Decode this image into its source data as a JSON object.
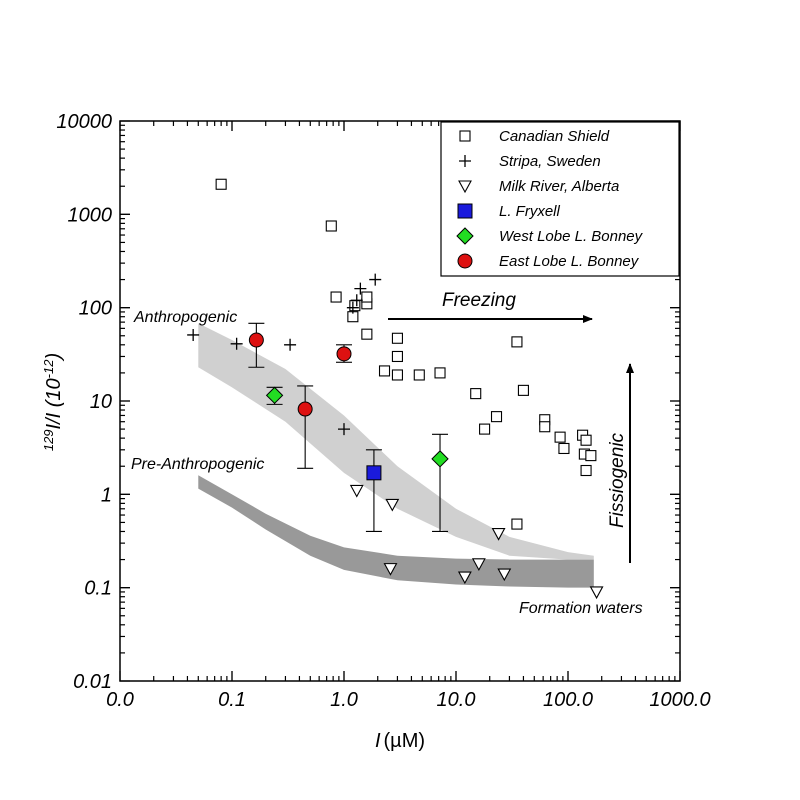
{
  "chart_data": {
    "type": "scatter",
    "x_scale": "log",
    "y_scale": "log",
    "xlabel_main": "I",
    "xlabel_unit": "(µM)",
    "ylabel_sup": "129",
    "ylabel_main": "I/I (10",
    "ylabel_exp": "-12",
    "ylabel_close": ")",
    "xlim": [
      0.01,
      1000
    ],
    "ylim": [
      0.01,
      10000
    ],
    "x_ticks": [
      {
        "v": 0.01,
        "label": "0.0"
      },
      {
        "v": 0.1,
        "label": "0.1"
      },
      {
        "v": 1,
        "label": "1.0"
      },
      {
        "v": 10,
        "label": "10.0"
      },
      {
        "v": 100,
        "label": "100.0"
      },
      {
        "v": 1000,
        "label": "1000.0"
      }
    ],
    "y_ticks": [
      {
        "v": 0.01,
        "label": "0.01"
      },
      {
        "v": 0.1,
        "label": "0.1"
      },
      {
        "v": 1,
        "label": "1"
      },
      {
        "v": 10,
        "label": "10"
      },
      {
        "v": 100,
        "label": "100"
      },
      {
        "v": 1000,
        "label": "1000"
      },
      {
        "v": 10000,
        "label": "10000"
      }
    ],
    "legend_position": "top-right",
    "series": [
      {
        "name": "Canadian Shield",
        "marker": "square-open",
        "color": "#000000",
        "points": [
          {
            "x": 0.08,
            "y": 2100
          },
          {
            "x": 0.77,
            "y": 750
          },
          {
            "x": 0.85,
            "y": 130
          },
          {
            "x": 1.2,
            "y": 80
          },
          {
            "x": 1.25,
            "y": 105
          },
          {
            "x": 1.6,
            "y": 110
          },
          {
            "x": 1.6,
            "y": 130
          },
          {
            "x": 1.6,
            "y": 52
          },
          {
            "x": 3.0,
            "y": 47
          },
          {
            "x": 3.0,
            "y": 30
          },
          {
            "x": 2.3,
            "y": 21
          },
          {
            "x": 3.0,
            "y": 19
          },
          {
            "x": 4.7,
            "y": 19
          },
          {
            "x": 7.2,
            "y": 20
          },
          {
            "x": 35,
            "y": 43
          },
          {
            "x": 40,
            "y": 13
          },
          {
            "x": 15,
            "y": 12
          },
          {
            "x": 23,
            "y": 6.8
          },
          {
            "x": 18,
            "y": 5.0
          },
          {
            "x": 62,
            "y": 6.3
          },
          {
            "x": 62,
            "y": 5.3
          },
          {
            "x": 85,
            "y": 4.1
          },
          {
            "x": 92,
            "y": 3.1
          },
          {
            "x": 135,
            "y": 4.3
          },
          {
            "x": 145,
            "y": 3.8
          },
          {
            "x": 140,
            "y": 2.7
          },
          {
            "x": 160,
            "y": 2.6
          },
          {
            "x": 145,
            "y": 1.8
          },
          {
            "x": 35,
            "y": 0.48
          }
        ]
      },
      {
        "name": "Stripa, Sweden",
        "marker": "plus",
        "color": "#000000",
        "points": [
          {
            "x": 0.045,
            "y": 51
          },
          {
            "x": 0.11,
            "y": 41
          },
          {
            "x": 0.33,
            "y": 40
          },
          {
            "x": 1.0,
            "y": 5.0
          },
          {
            "x": 1.2,
            "y": 100
          },
          {
            "x": 1.4,
            "y": 160
          },
          {
            "x": 1.9,
            "y": 200
          },
          {
            "x": 1.3,
            "y": 120
          }
        ]
      },
      {
        "name": "Milk River, Alberta",
        "marker": "triangle-down-open",
        "color": "#000000",
        "points": [
          {
            "x": 1.3,
            "y": 1.1
          },
          {
            "x": 2.7,
            "y": 0.78
          },
          {
            "x": 2.6,
            "y": 0.16
          },
          {
            "x": 12,
            "y": 0.13
          },
          {
            "x": 16,
            "y": 0.18
          },
          {
            "x": 24,
            "y": 0.38
          },
          {
            "x": 27,
            "y": 0.14
          },
          {
            "x": 180,
            "y": 0.09
          }
        ]
      },
      {
        "name": "L. Fryxell",
        "marker": "square-filled",
        "color": "#1a1adc",
        "points": [
          {
            "x": 1.85,
            "y": 1.7,
            "yerr_low": 0.4,
            "yerr_high": 3.0
          }
        ]
      },
      {
        "name": "West Lobe L. Bonney",
        "marker": "diamond-filled",
        "color": "#22dd22",
        "points": [
          {
            "x": 0.24,
            "y": 11.5,
            "yerr_low": 9.2,
            "yerr_high": 14
          },
          {
            "x": 7.2,
            "y": 2.4,
            "yerr_low": 0.4,
            "yerr_high": 4.4
          }
        ]
      },
      {
        "name": "East Lobe L. Bonney",
        "marker": "circle-filled",
        "color": "#dd1111",
        "points": [
          {
            "x": 0.165,
            "y": 45,
            "yerr_low": 23,
            "yerr_high": 68
          },
          {
            "x": 0.45,
            "y": 8.2,
            "yerr_low": 1.9,
            "yerr_high": 14.5
          },
          {
            "x": 1.0,
            "y": 32,
            "yerr_low": 26,
            "yerr_high": 40
          }
        ]
      }
    ],
    "bands": [
      {
        "name": "Anthropogenic",
        "color": "#d0d0d0",
        "upper": [
          [
            0.05,
            68
          ],
          [
            0.1,
            45
          ],
          [
            0.3,
            22
          ],
          [
            1,
            7
          ],
          [
            3,
            2.0
          ],
          [
            10,
            0.7
          ],
          [
            30,
            0.35
          ],
          [
            100,
            0.24
          ],
          [
            170,
            0.22
          ]
        ],
        "lower": [
          [
            0.05,
            23
          ],
          [
            0.1,
            14
          ],
          [
            0.3,
            6
          ],
          [
            1,
            1.7
          ],
          [
            3,
            0.7
          ],
          [
            10,
            0.35
          ],
          [
            30,
            0.22
          ],
          [
            100,
            0.2
          ],
          [
            170,
            0.2
          ]
        ]
      },
      {
        "name": "Pre-Anthropogenic",
        "color": "#999999",
        "upper": [
          [
            0.05,
            1.6
          ],
          [
            0.1,
            1.0
          ],
          [
            0.2,
            0.62
          ],
          [
            0.5,
            0.36
          ],
          [
            1,
            0.27
          ],
          [
            3,
            0.22
          ],
          [
            10,
            0.205
          ],
          [
            30,
            0.2
          ],
          [
            100,
            0.2
          ],
          [
            170,
            0.2
          ]
        ],
        "lower": [
          [
            0.05,
            1.15
          ],
          [
            0.1,
            0.72
          ],
          [
            0.2,
            0.42
          ],
          [
            0.5,
            0.22
          ],
          [
            1,
            0.155
          ],
          [
            3,
            0.12
          ],
          [
            10,
            0.108
          ],
          [
            30,
            0.103
          ],
          [
            100,
            0.1
          ],
          [
            170,
            0.1
          ]
        ]
      }
    ],
    "annotations": {
      "anthropogenic": "Anthropogenic",
      "pre_anthropogenic": "Pre-Anthropogenic",
      "freezing": "Freezing",
      "fissiogenic": "Fissiogenic",
      "formation_waters": "Formation waters"
    }
  }
}
